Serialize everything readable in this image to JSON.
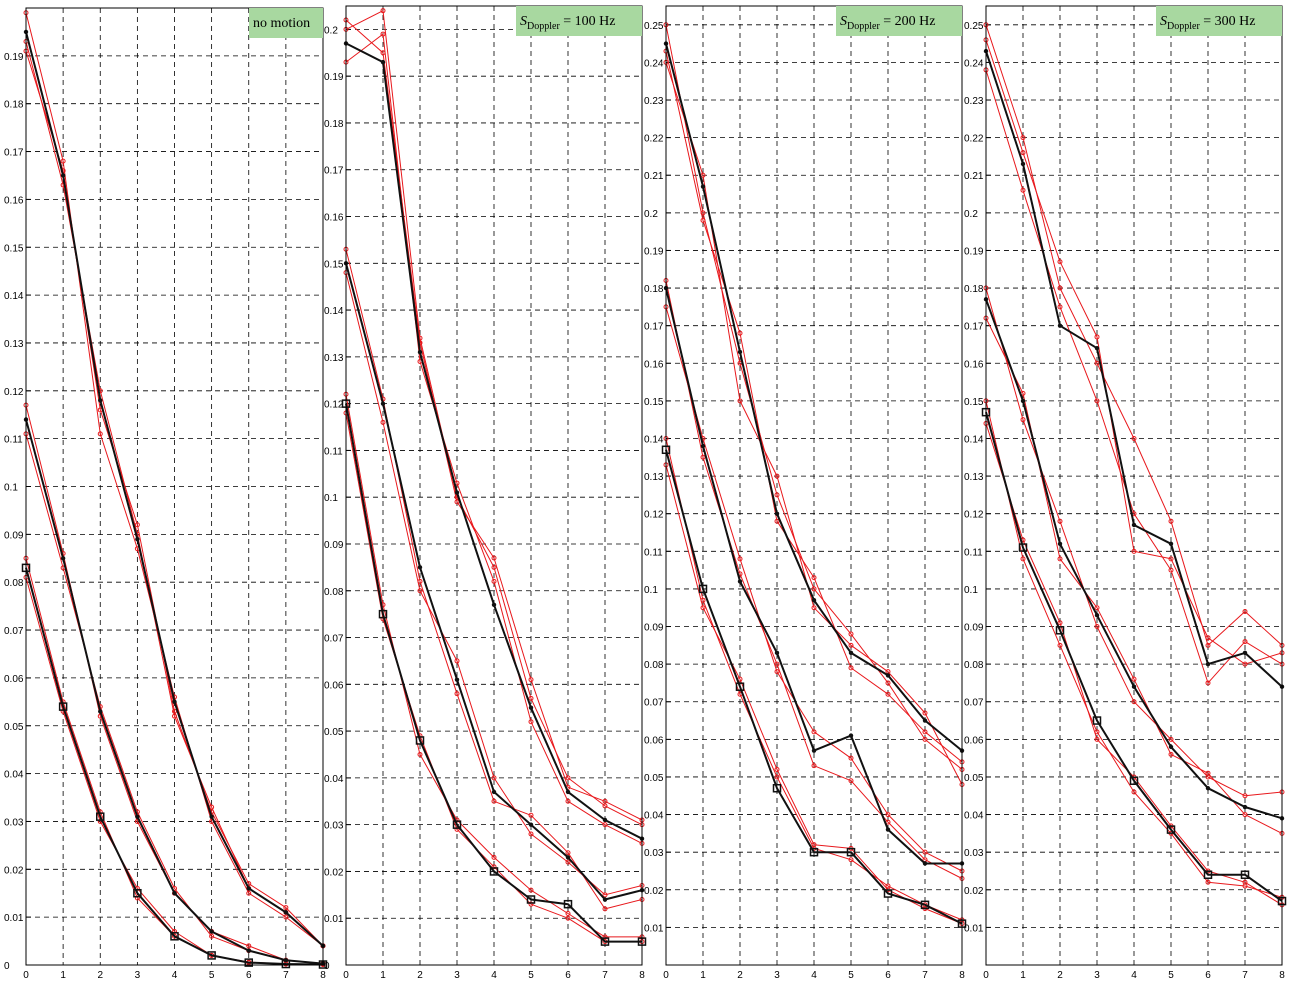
{
  "colors": {
    "measured": "#e8181c",
    "model": "#111111",
    "title_box": "#a8d8a0"
  },
  "chart_data": [
    {
      "type": "line",
      "title": "no motion",
      "title_main": "no motion",
      "title_sub": "",
      "title_tail": "",
      "xlim": [
        0,
        8
      ],
      "ylim": [
        0,
        0.2
      ],
      "xticks": [
        "0",
        "1",
        "2",
        "3",
        "4",
        "5",
        "6",
        "7",
        "8"
      ],
      "yticks": [
        "0",
        "0.01",
        "0.02",
        "0.03",
        "0.04",
        "0.05",
        "0.06",
        "0.07",
        "0.08",
        "0.09",
        "0.1",
        "0.11",
        "0.12",
        "0.13",
        "0.14",
        "0.15",
        "0.16",
        "0.17",
        "0.18",
        "0.19"
      ],
      "grid": true,
      "x": [
        0,
        1,
        2,
        3,
        4,
        5,
        6,
        7,
        8
      ],
      "series": [
        {
          "kind": "model",
          "marker": "dot",
          "values": [
            0.195,
            0.165,
            0.118,
            0.089,
            0.055,
            0.031,
            0.016,
            0.011,
            0.004
          ]
        },
        {
          "kind": "model",
          "marker": "dot",
          "values": [
            0.114,
            0.085,
            0.053,
            0.031,
            0.015,
            0.007,
            0.003,
            0.001,
            0.0003
          ]
        },
        {
          "kind": "model",
          "marker": "square",
          "values": [
            0.083,
            0.054,
            0.031,
            0.015,
            0.006,
            0.002,
            0.0005,
            0.0002,
            0.0001
          ]
        },
        {
          "kind": "measured",
          "values": [
            0.191,
            0.166,
            0.116,
            0.092,
            0.053,
            0.032,
            0.017,
            0.012,
            0.004
          ]
        },
        {
          "kind": "measured",
          "values": [
            0.199,
            0.168,
            0.111,
            0.087,
            0.056,
            0.03,
            0.015,
            0.01,
            0.004
          ]
        },
        {
          "kind": "measured",
          "values": [
            0.193,
            0.163,
            0.12,
            0.09,
            0.052,
            0.033,
            0.016,
            0.011,
            0.004
          ]
        },
        {
          "kind": "measured",
          "values": [
            0.117,
            0.086,
            0.052,
            0.03,
            0.015,
            0.007,
            0.004,
            0.001,
            0.0003
          ]
        },
        {
          "kind": "measured",
          "values": [
            0.111,
            0.083,
            0.054,
            0.032,
            0.016,
            0.006,
            0.003,
            0.001,
            0.0003
          ]
        },
        {
          "kind": "measured",
          "values": [
            0.085,
            0.055,
            0.032,
            0.014,
            0.006,
            0.002,
            0.0006,
            0.0002,
            0.0001
          ]
        },
        {
          "kind": "measured",
          "values": [
            0.081,
            0.053,
            0.03,
            0.016,
            0.007,
            0.002,
            0.0005,
            0.0002,
            0.0001
          ]
        }
      ]
    },
    {
      "type": "line",
      "title": "S_Doppler = 100 Hz",
      "title_main": "S",
      "title_sub": "Doppler",
      "title_tail": " = 100 Hz",
      "xlim": [
        0,
        8
      ],
      "ylim": [
        0,
        0.205
      ],
      "xticks": [
        "0",
        "1",
        "2",
        "3",
        "4",
        "5",
        "6",
        "7",
        "8"
      ],
      "yticks": [
        "0",
        "0.01",
        "0.02",
        "0.03",
        "0.04",
        "0.05",
        "0.06",
        "0.07",
        "0.08",
        "0.09",
        "0.1",
        "0.11",
        "0.12",
        "0.13",
        "0.14",
        "0.15",
        "0.16",
        "0.17",
        "0.18",
        "0.19",
        "0.2"
      ],
      "grid": true,
      "x": [
        0,
        1,
        2,
        3,
        4,
        5,
        6,
        7,
        8
      ],
      "series": [
        {
          "kind": "model",
          "marker": "dot",
          "values": [
            0.197,
            0.193,
            0.131,
            0.101,
            0.077,
            0.055,
            0.037,
            0.031,
            0.027
          ]
        },
        {
          "kind": "model",
          "marker": "dot",
          "values": [
            0.15,
            0.12,
            0.085,
            0.061,
            0.037,
            0.03,
            0.023,
            0.014,
            0.016
          ]
        },
        {
          "kind": "model",
          "marker": "square",
          "values": [
            0.12,
            0.075,
            0.048,
            0.03,
            0.02,
            0.014,
            0.013,
            0.005,
            0.005
          ]
        },
        {
          "kind": "measured",
          "values": [
            0.2,
            0.204,
            0.134,
            0.1,
            0.085,
            0.057,
            0.04,
            0.034,
            0.03
          ]
        },
        {
          "kind": "measured",
          "values": [
            0.193,
            0.199,
            0.129,
            0.103,
            0.082,
            0.052,
            0.035,
            0.03,
            0.026
          ]
        },
        {
          "kind": "measured",
          "values": [
            0.202,
            0.195,
            0.133,
            0.099,
            0.087,
            0.061,
            0.038,
            0.035,
            0.031
          ]
        },
        {
          "kind": "measured",
          "values": [
            0.148,
            0.116,
            0.08,
            0.065,
            0.04,
            0.028,
            0.022,
            0.015,
            0.017
          ]
        },
        {
          "kind": "measured",
          "values": [
            0.153,
            0.121,
            0.082,
            0.058,
            0.035,
            0.032,
            0.024,
            0.012,
            0.014
          ]
        },
        {
          "kind": "measured",
          "values": [
            0.122,
            0.077,
            0.045,
            0.031,
            0.023,
            0.016,
            0.011,
            0.006,
            0.006
          ]
        },
        {
          "kind": "measured",
          "values": [
            0.118,
            0.074,
            0.049,
            0.029,
            0.021,
            0.013,
            0.01,
            0.005,
            0.005
          ]
        }
      ]
    },
    {
      "type": "line",
      "title": "S_Doppler = 200 Hz",
      "title_main": "S",
      "title_sub": "Doppler",
      "title_tail": " = 200 Hz",
      "xlim": [
        0,
        8
      ],
      "ylim": [
        0,
        0.255
      ],
      "xticks": [
        "0",
        "1",
        "2",
        "3",
        "4",
        "5",
        "6",
        "7",
        "8"
      ],
      "yticks": [
        "0.01",
        "0.02",
        "0.03",
        "0.04",
        "0.05",
        "0.06",
        "0.07",
        "0.08",
        "0.09",
        "0.1",
        "0.11",
        "0.12",
        "0.13",
        "0.14",
        "0.15",
        "0.16",
        "0.17",
        "0.18",
        "0.19",
        "0.2",
        "0.21",
        "0.22",
        "0.23",
        "0.24",
        "0.25"
      ],
      "grid": true,
      "x": [
        0,
        1,
        2,
        3,
        4,
        5,
        6,
        7,
        8
      ],
      "series": [
        {
          "kind": "model",
          "marker": "dot",
          "values": [
            0.245,
            0.207,
            0.163,
            0.12,
            0.097,
            0.083,
            0.077,
            0.065,
            0.057
          ]
        },
        {
          "kind": "model",
          "marker": "dot",
          "values": [
            0.18,
            0.138,
            0.102,
            0.083,
            0.057,
            0.061,
            0.036,
            0.027,
            0.027
          ]
        },
        {
          "kind": "model",
          "marker": "square",
          "values": [
            0.137,
            0.1,
            0.074,
            0.047,
            0.03,
            0.03,
            0.019,
            0.016,
            0.011
          ]
        },
        {
          "kind": "measured",
          "values": [
            0.25,
            0.2,
            0.16,
            0.125,
            0.1,
            0.088,
            0.075,
            0.06,
            0.052
          ]
        },
        {
          "kind": "measured",
          "values": [
            0.24,
            0.21,
            0.15,
            0.13,
            0.095,
            0.085,
            0.078,
            0.067,
            0.048
          ]
        },
        {
          "kind": "measured",
          "values": [
            0.243,
            0.198,
            0.168,
            0.118,
            0.103,
            0.079,
            0.072,
            0.062,
            0.054
          ]
        },
        {
          "kind": "measured",
          "values": [
            0.175,
            0.14,
            0.108,
            0.078,
            0.062,
            0.055,
            0.04,
            0.03,
            0.025
          ]
        },
        {
          "kind": "measured",
          "values": [
            0.182,
            0.135,
            0.104,
            0.08,
            0.053,
            0.049,
            0.038,
            0.028,
            0.023
          ]
        },
        {
          "kind": "measured",
          "values": [
            0.14,
            0.097,
            0.072,
            0.05,
            0.031,
            0.028,
            0.021,
            0.016,
            0.012
          ]
        },
        {
          "kind": "measured",
          "values": [
            0.133,
            0.095,
            0.076,
            0.052,
            0.032,
            0.031,
            0.02,
            0.015,
            0.011
          ]
        }
      ]
    },
    {
      "type": "line",
      "title": "S_Doppler = 300 Hz",
      "title_main": "S",
      "title_sub": "Doppler",
      "title_tail": " = 300 Hz",
      "xlim": [
        0,
        8
      ],
      "ylim": [
        0,
        0.255
      ],
      "xticks": [
        "0",
        "1",
        "2",
        "3",
        "4",
        "5",
        "6",
        "7",
        "8"
      ],
      "yticks": [
        "0.01",
        "0.02",
        "0.03",
        "0.04",
        "0.05",
        "0.06",
        "0.07",
        "0.08",
        "0.09",
        "0.1",
        "0.11",
        "0.12",
        "0.13",
        "0.14",
        "0.15",
        "0.16",
        "0.17",
        "0.18",
        "0.19",
        "0.2",
        "0.21",
        "0.22",
        "0.23",
        "0.24",
        "0.25"
      ],
      "grid": true,
      "x": [
        0,
        1,
        2,
        3,
        4,
        5,
        6,
        7,
        8
      ],
      "series": [
        {
          "kind": "model",
          "marker": "dot",
          "values": [
            0.243,
            0.213,
            0.17,
            0.164,
            0.117,
            0.112,
            0.08,
            0.083,
            0.074
          ]
        },
        {
          "kind": "model",
          "marker": "dot",
          "values": [
            0.177,
            0.15,
            0.112,
            0.093,
            0.074,
            0.058,
            0.047,
            0.042,
            0.039
          ]
        },
        {
          "kind": "model",
          "marker": "square",
          "values": [
            0.147,
            0.111,
            0.089,
            0.065,
            0.049,
            0.036,
            0.024,
            0.024,
            0.017
          ]
        },
        {
          "kind": "measured",
          "values": [
            0.25,
            0.22,
            0.18,
            0.16,
            0.14,
            0.118,
            0.085,
            0.094,
            0.085
          ]
        },
        {
          "kind": "measured",
          "values": [
            0.238,
            0.206,
            0.175,
            0.15,
            0.12,
            0.105,
            0.075,
            0.086,
            0.08
          ]
        },
        {
          "kind": "measured",
          "values": [
            0.246,
            0.216,
            0.187,
            0.167,
            0.11,
            0.108,
            0.087,
            0.08,
            0.083
          ]
        },
        {
          "kind": "measured",
          "values": [
            0.18,
            0.145,
            0.118,
            0.09,
            0.07,
            0.06,
            0.05,
            0.045,
            0.046
          ]
        },
        {
          "kind": "measured",
          "values": [
            0.172,
            0.152,
            0.108,
            0.095,
            0.076,
            0.056,
            0.051,
            0.04,
            0.035
          ]
        },
        {
          "kind": "measured",
          "values": [
            0.15,
            0.108,
            0.085,
            0.062,
            0.046,
            0.035,
            0.022,
            0.021,
            0.018
          ]
        },
        {
          "kind": "measured",
          "values": [
            0.144,
            0.113,
            0.091,
            0.06,
            0.05,
            0.037,
            0.025,
            0.022,
            0.016
          ]
        }
      ]
    }
  ]
}
